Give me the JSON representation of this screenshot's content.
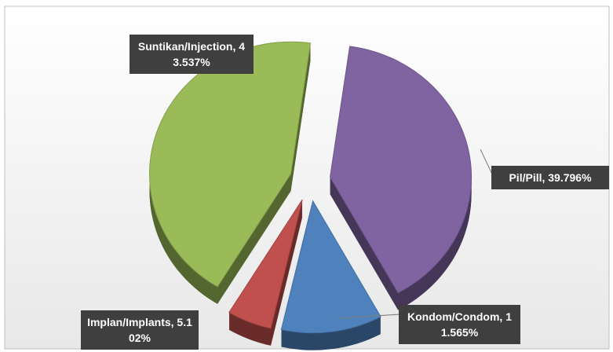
{
  "chart_data": {
    "type": "pie3d",
    "series": [
      {
        "name": null,
        "values": [
          39.796,
          11.565,
          5.102,
          43.537
        ],
        "value_labels": [
          "Pil/Pill, 39.796%",
          "Kondom/Condom, 11.565%",
          "Implan/Implants, 5.102%",
          "Suntikan/Injection, 43.537%"
        ],
        "colors": [
          "#8064a2",
          "#4f81bd",
          "#c0504d",
          "#9bbb59"
        ]
      }
    ]
  }
}
